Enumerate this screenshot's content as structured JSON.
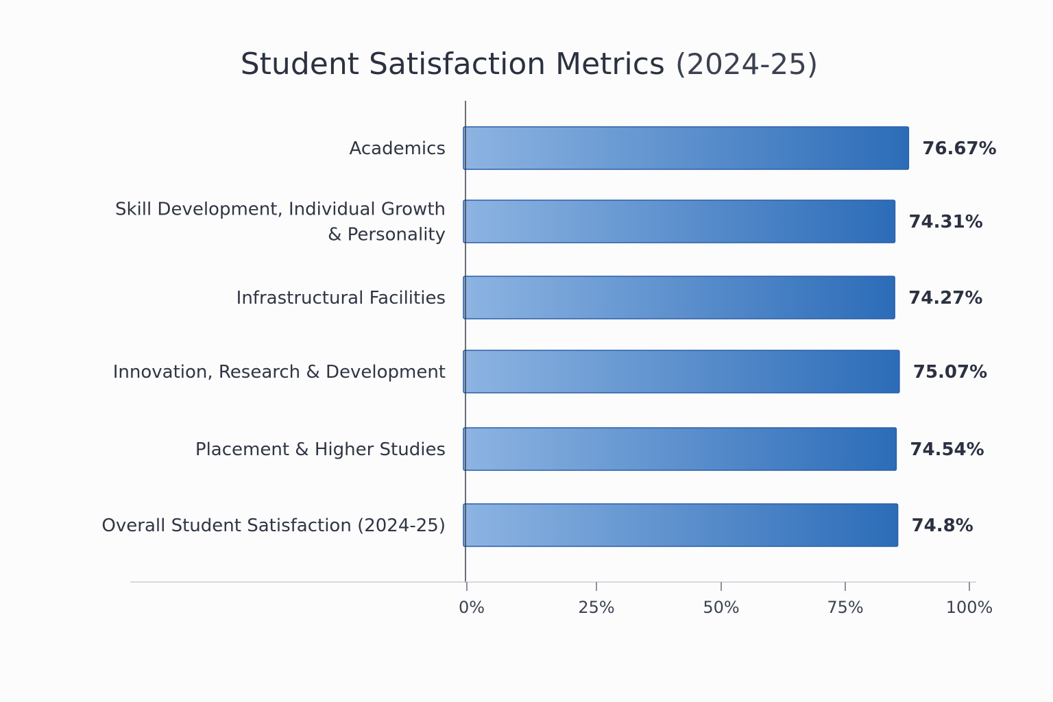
{
  "chart_data": {
    "type": "bar",
    "orientation": "horizontal",
    "title": "Student Satisfaction Metrics",
    "subtitle": "(2024-25)",
    "categories": [
      [
        "Academics"
      ],
      [
        "Skill Development, Individual Growth",
        "& Personality"
      ],
      [
        "Infrastructural Facilities"
      ],
      [
        "Innovation, Research & Development"
      ],
      [
        "Placement & Higher Studies"
      ],
      [
        "Overall Student Satisfaction (2024-25)"
      ]
    ],
    "values": [
      76.67,
      74.31,
      74.27,
      75.07,
      74.54,
      74.8
    ],
    "value_labels": [
      "76.67%",
      "74.31%",
      "74.27%",
      "75.07%",
      "74.54%",
      "74.8%"
    ],
    "xlim": [
      0,
      100
    ],
    "x_ticks": [
      0,
      25,
      50,
      75,
      100
    ],
    "x_tick_labels": [
      "0%",
      "25%",
      "50%",
      "75%",
      "100%"
    ],
    "xlabel": "",
    "ylabel": "",
    "grid": false,
    "legend": "none",
    "colors": {
      "bar_light": "#8db4e2",
      "bar_dark": "#2c6cb8",
      "bar_stroke": "#2a5ea8",
      "axis": "#3a3f4a",
      "baseline": "#c9ccd8",
      "text": "#2b3140"
    }
  }
}
